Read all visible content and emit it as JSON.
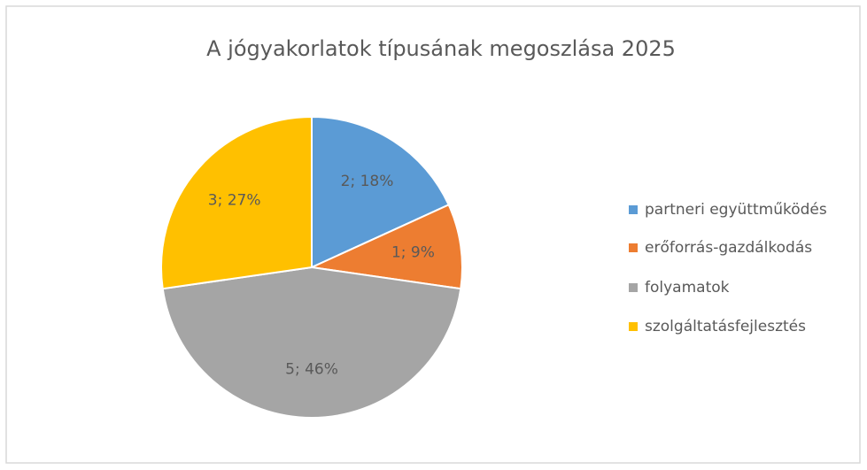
{
  "chart_data": {
    "type": "pie",
    "title": "A jógyakorlatok típusának megoszlása 2025",
    "categories": [
      "partneri együttműködés",
      "erőforrás-gazdálkodás",
      "folyamatok",
      "szolgáltatásfejlesztés"
    ],
    "values": [
      2,
      1,
      5,
      3
    ],
    "value_labels": [
      "2; 18%",
      "1; 9%",
      "5; 46%",
      "3; 27%"
    ],
    "colors": [
      "#5b9bd5",
      "#ed7d31",
      "#a5a5a5",
      "#ffc000"
    ],
    "legend": "right"
  }
}
